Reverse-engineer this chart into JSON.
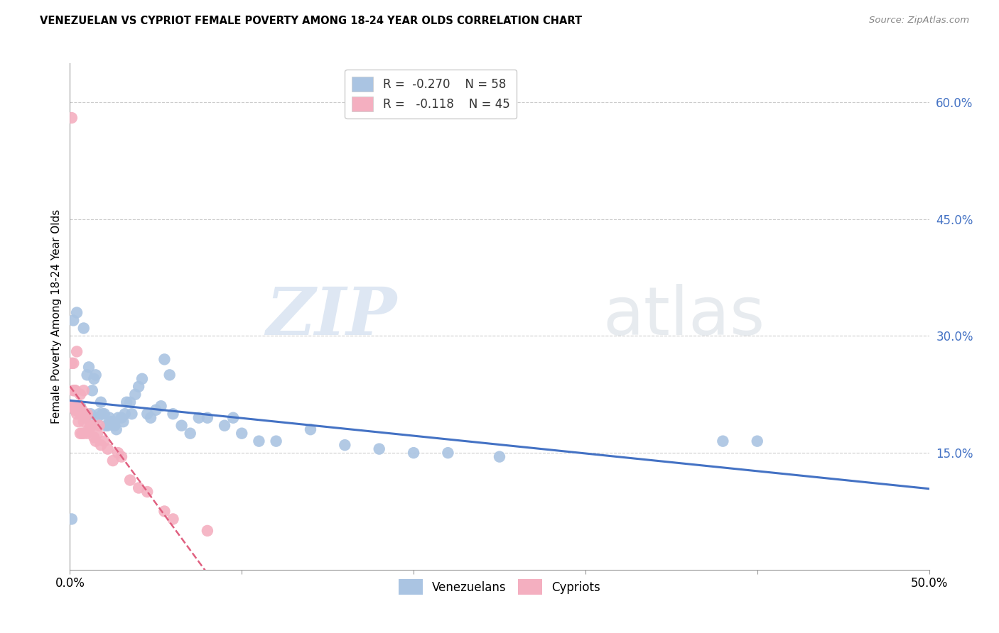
{
  "title": "VENEZUELAN VS CYPRIOT FEMALE POVERTY AMONG 18-24 YEAR OLDS CORRELATION CHART",
  "source": "Source: ZipAtlas.com",
  "ylabel": "Female Poverty Among 18-24 Year Olds",
  "xlim": [
    0.0,
    0.5
  ],
  "ylim": [
    0.0,
    0.65
  ],
  "xticks": [
    0.0,
    0.1,
    0.2,
    0.3,
    0.4,
    0.5
  ],
  "xticklabels": [
    "0.0%",
    "",
    "",
    "",
    "",
    "50.0%"
  ],
  "yticks_right": [
    0.15,
    0.3,
    0.45,
    0.6
  ],
  "yticklabels_right": [
    "15.0%",
    "30.0%",
    "45.0%",
    "60.0%"
  ],
  "watermark_zip": "ZIP",
  "watermark_atlas": "atlas",
  "legend_R_blue": "-0.270",
  "legend_N_blue": "58",
  "legend_R_pink": "-0.118",
  "legend_N_pink": "45",
  "blue_color": "#aac4e2",
  "pink_color": "#f4afc0",
  "line_blue": "#4472c4",
  "line_pink": "#e06080",
  "venezuelan_x": [
    0.001,
    0.002,
    0.004,
    0.006,
    0.008,
    0.009,
    0.01,
    0.011,
    0.012,
    0.013,
    0.014,
    0.015,
    0.016,
    0.017,
    0.018,
    0.019,
    0.02,
    0.021,
    0.022,
    0.023,
    0.024,
    0.025,
    0.026,
    0.027,
    0.028,
    0.03,
    0.031,
    0.032,
    0.033,
    0.035,
    0.036,
    0.038,
    0.04,
    0.042,
    0.045,
    0.047,
    0.05,
    0.053,
    0.055,
    0.058,
    0.06,
    0.065,
    0.07,
    0.075,
    0.08,
    0.09,
    0.095,
    0.1,
    0.11,
    0.12,
    0.14,
    0.16,
    0.18,
    0.2,
    0.22,
    0.25,
    0.38,
    0.4
  ],
  "venezuelan_y": [
    0.065,
    0.32,
    0.33,
    0.21,
    0.31,
    0.195,
    0.25,
    0.26,
    0.2,
    0.23,
    0.245,
    0.25,
    0.195,
    0.2,
    0.215,
    0.2,
    0.2,
    0.185,
    0.185,
    0.195,
    0.19,
    0.19,
    0.185,
    0.18,
    0.195,
    0.195,
    0.19,
    0.2,
    0.215,
    0.215,
    0.2,
    0.225,
    0.235,
    0.245,
    0.2,
    0.195,
    0.205,
    0.21,
    0.27,
    0.25,
    0.2,
    0.185,
    0.175,
    0.195,
    0.195,
    0.185,
    0.195,
    0.175,
    0.165,
    0.165,
    0.18,
    0.16,
    0.155,
    0.15,
    0.15,
    0.145,
    0.165,
    0.165
  ],
  "cypriot_x": [
    0.001,
    0.001,
    0.001,
    0.002,
    0.002,
    0.002,
    0.003,
    0.003,
    0.003,
    0.004,
    0.004,
    0.005,
    0.005,
    0.005,
    0.006,
    0.006,
    0.006,
    0.007,
    0.007,
    0.007,
    0.008,
    0.008,
    0.008,
    0.009,
    0.01,
    0.01,
    0.011,
    0.012,
    0.013,
    0.014,
    0.015,
    0.016,
    0.017,
    0.018,
    0.02,
    0.022,
    0.025,
    0.028,
    0.03,
    0.035,
    0.04,
    0.045,
    0.055,
    0.06,
    0.08
  ],
  "cypriot_y": [
    0.58,
    0.265,
    0.21,
    0.265,
    0.23,
    0.21,
    0.23,
    0.23,
    0.205,
    0.28,
    0.2,
    0.205,
    0.19,
    0.21,
    0.225,
    0.2,
    0.175,
    0.2,
    0.205,
    0.175,
    0.23,
    0.19,
    0.175,
    0.195,
    0.2,
    0.175,
    0.18,
    0.185,
    0.185,
    0.17,
    0.165,
    0.175,
    0.185,
    0.16,
    0.165,
    0.155,
    0.14,
    0.15,
    0.145,
    0.115,
    0.105,
    0.1,
    0.075,
    0.065,
    0.05
  ]
}
